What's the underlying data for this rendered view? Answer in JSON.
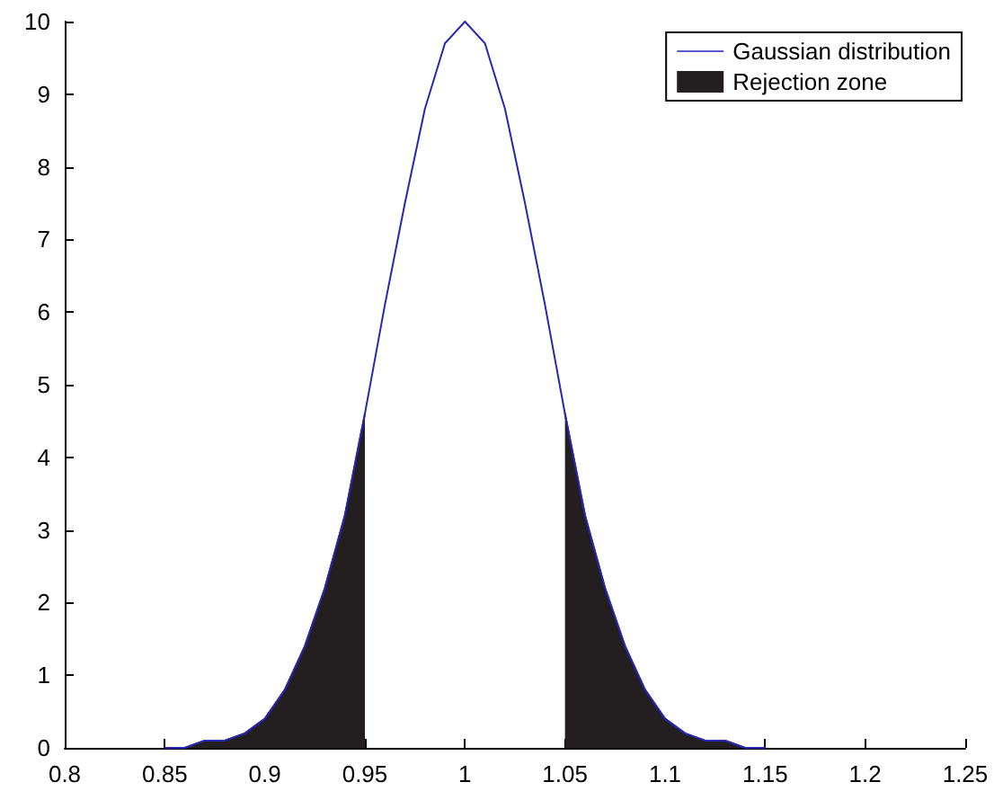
{
  "chart_data": {
    "type": "line",
    "series": [
      {
        "name": "Gaussian distribution",
        "color": "#2626b8",
        "x": [
          0.85,
          0.86,
          0.87,
          0.88,
          0.89,
          0.9,
          0.91,
          0.92,
          0.93,
          0.94,
          0.95,
          0.96,
          0.97,
          0.98,
          0.99,
          1.0,
          1.01,
          1.02,
          1.03,
          1.04,
          1.05,
          1.06,
          1.07,
          1.08,
          1.09,
          1.1,
          1.11,
          1.12,
          1.13,
          1.14,
          1.15
        ],
        "values": [
          0.0,
          0.0,
          0.1,
          0.1,
          0.2,
          0.4,
          0.8,
          1.4,
          2.2,
          3.2,
          4.6,
          6.1,
          7.5,
          8.8,
          9.7,
          10.0,
          9.7,
          8.8,
          7.5,
          6.1,
          4.6,
          3.2,
          2.2,
          1.4,
          0.8,
          0.4,
          0.2,
          0.1,
          0.1,
          0.0,
          0.0
        ]
      },
      {
        "name": "Rejection zone",
        "type": "area",
        "color": "#231f20",
        "x": [
          0.85,
          0.86,
          0.87,
          0.88,
          0.89,
          0.9,
          0.91,
          0.92,
          0.93,
          0.94,
          0.95,
          0.96,
          0.97,
          0.98,
          0.99,
          1.0,
          1.01,
          1.02,
          1.03,
          1.04,
          1.05,
          1.06,
          1.07,
          1.08,
          1.09,
          1.1,
          1.11,
          1.12,
          1.13,
          1.14,
          1.15
        ],
        "values": [
          0.0,
          0.0,
          0.1,
          0.1,
          0.2,
          0.4,
          0.8,
          1.4,
          2.2,
          3.2,
          4.6,
          null,
          null,
          null,
          null,
          null,
          null,
          null,
          null,
          null,
          4.6,
          3.2,
          2.2,
          1.4,
          0.8,
          0.4,
          0.2,
          0.1,
          0.1,
          0.0,
          0.0
        ]
      }
    ],
    "xlim": [
      0.8,
      1.25
    ],
    "xticks": [
      0.8,
      0.85,
      0.9,
      0.95,
      1,
      1.05,
      1.1,
      1.15,
      1.2,
      1.25
    ],
    "ylim": [
      0,
      10
    ],
    "yticks": [
      0,
      1,
      2,
      3,
      4,
      5,
      6,
      7,
      8,
      9,
      10
    ],
    "grid": false,
    "legend": "top right",
    "marker": "none",
    "line_style": "solid"
  }
}
